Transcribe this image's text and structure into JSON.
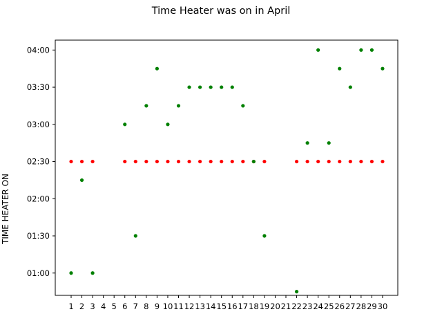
{
  "chart_data": {
    "type": "scatter",
    "title": "Time Heater was on in April",
    "xlabel": "",
    "ylabel": "TIME HEATER ON",
    "x_categories": [
      "1",
      "2",
      "3",
      "4",
      "5",
      "6",
      "7",
      "8",
      "9",
      "10",
      "11",
      "12",
      "13",
      "14",
      "15",
      "16",
      "17",
      "18",
      "19",
      "20",
      "21",
      "22",
      "23",
      "24",
      "25",
      "26",
      "27",
      "28",
      "29",
      "30"
    ],
    "y_ticks": [
      "01:00",
      "01:30",
      "02:00",
      "02:30",
      "03:00",
      "03:30",
      "04:00"
    ],
    "y_tick_minutes": [
      60,
      90,
      120,
      150,
      180,
      210,
      240
    ],
    "ylim_minutes": [
      42,
      248
    ],
    "grid": false,
    "series": [
      {
        "color": "#ff0000",
        "points": [
          {
            "day": 1,
            "minutes": 150
          },
          {
            "day": 2,
            "minutes": 150
          },
          {
            "day": 3,
            "minutes": 150
          },
          {
            "day": 6,
            "minutes": 150
          },
          {
            "day": 7,
            "minutes": 150
          },
          {
            "day": 8,
            "minutes": 150
          },
          {
            "day": 9,
            "minutes": 150
          },
          {
            "day": 10,
            "minutes": 150
          },
          {
            "day": 11,
            "minutes": 150
          },
          {
            "day": 12,
            "minutes": 150
          },
          {
            "day": 13,
            "minutes": 150
          },
          {
            "day": 14,
            "minutes": 150
          },
          {
            "day": 15,
            "minutes": 150
          },
          {
            "day": 16,
            "minutes": 150
          },
          {
            "day": 17,
            "minutes": 150
          },
          {
            "day": 18,
            "minutes": 150
          },
          {
            "day": 19,
            "minutes": 150
          },
          {
            "day": 22,
            "minutes": 150
          },
          {
            "day": 23,
            "minutes": 150
          },
          {
            "day": 24,
            "minutes": 150
          },
          {
            "day": 25,
            "minutes": 150
          },
          {
            "day": 26,
            "minutes": 150
          },
          {
            "day": 27,
            "minutes": 150
          },
          {
            "day": 28,
            "minutes": 150
          },
          {
            "day": 29,
            "minutes": 150
          },
          {
            "day": 30,
            "minutes": 150
          }
        ]
      },
      {
        "color": "#008000",
        "points": [
          {
            "day": 1,
            "minutes": 60
          },
          {
            "day": 2,
            "minutes": 135
          },
          {
            "day": 3,
            "minutes": 60
          },
          {
            "day": 6,
            "minutes": 180
          },
          {
            "day": 7,
            "minutes": 90
          },
          {
            "day": 8,
            "minutes": 195
          },
          {
            "day": 9,
            "minutes": 225
          },
          {
            "day": 10,
            "minutes": 180
          },
          {
            "day": 11,
            "minutes": 195
          },
          {
            "day": 12,
            "minutes": 210
          },
          {
            "day": 13,
            "minutes": 210
          },
          {
            "day": 14,
            "minutes": 210
          },
          {
            "day": 15,
            "minutes": 210
          },
          {
            "day": 16,
            "minutes": 210
          },
          {
            "day": 17,
            "minutes": 195
          },
          {
            "day": 18,
            "minutes": 150
          },
          {
            "day": 19,
            "minutes": 90
          },
          {
            "day": 22,
            "minutes": 45
          },
          {
            "day": 23,
            "minutes": 165
          },
          {
            "day": 24,
            "minutes": 240
          },
          {
            "day": 25,
            "minutes": 165
          },
          {
            "day": 26,
            "minutes": 225
          },
          {
            "day": 27,
            "minutes": 210
          },
          {
            "day": 28,
            "minutes": 240
          },
          {
            "day": 29,
            "minutes": 240
          },
          {
            "day": 30,
            "minutes": 225
          }
        ]
      }
    ]
  }
}
